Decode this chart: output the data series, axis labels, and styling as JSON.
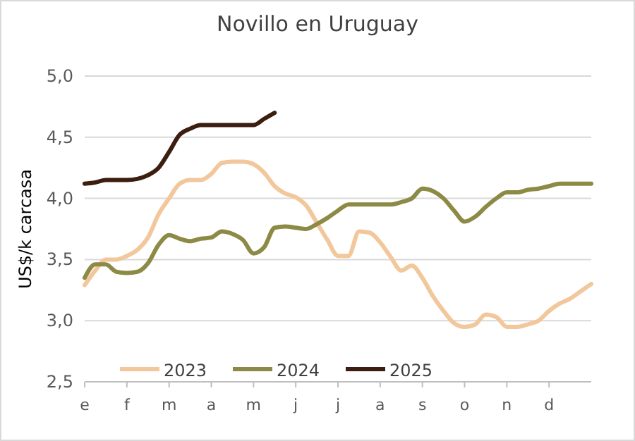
{
  "chart_data": {
    "type": "line",
    "title": "Novillo en Uruguay",
    "ylabel": "US$/k carcasa",
    "categories": [
      "e",
      null,
      null,
      null,
      "f",
      null,
      null,
      null,
      "m",
      null,
      null,
      null,
      "a",
      null,
      null,
      null,
      "m",
      null,
      null,
      null,
      "j",
      null,
      null,
      null,
      "j",
      null,
      null,
      null,
      "a",
      null,
      null,
      null,
      "s",
      null,
      null,
      null,
      "o",
      null,
      null,
      null,
      "n",
      null,
      null,
      null,
      "d",
      null,
      null,
      null,
      null
    ],
    "ylim": [
      2.5,
      5
    ],
    "yticks": [
      {
        "value": 2.5,
        "label": "2,5"
      },
      {
        "value": 3,
        "label": "3,0"
      },
      {
        "value": 3.5,
        "label": "3,5"
      },
      {
        "value": 4,
        "label": "4,0"
      },
      {
        "value": 4.5,
        "label": "4,5"
      },
      {
        "value": 5,
        "label": "5,0"
      }
    ],
    "grid": "y",
    "legend": "bottom",
    "line_style": "solid",
    "marker": "none",
    "series": [
      {
        "name": "2023",
        "color": "#f2c79b",
        "values": [
          3.29,
          3.41,
          3.5,
          3.5,
          3.53,
          3.58,
          3.68,
          3.87,
          4.0,
          4.12,
          4.15,
          4.15,
          4.2,
          4.29,
          4.3,
          4.3,
          4.28,
          4.21,
          4.1,
          4.04,
          4.01,
          3.94,
          3.8,
          3.66,
          3.53,
          3.53,
          3.73,
          3.72,
          3.64,
          3.52,
          3.41,
          3.45,
          3.35,
          3.2,
          3.08,
          2.98,
          2.95,
          2.97,
          3.05,
          3.03,
          2.95,
          2.95,
          2.97,
          3.0,
          3.08,
          3.14,
          3.18,
          3.24,
          3.3
        ]
      },
      {
        "name": "2024",
        "color": "#8c8a45",
        "values": [
          3.35,
          3.46,
          3.46,
          3.4,
          3.39,
          3.4,
          3.47,
          3.62,
          3.7,
          3.67,
          3.65,
          3.67,
          3.68,
          3.73,
          3.71,
          3.66,
          3.55,
          3.6,
          3.76,
          3.77,
          3.76,
          3.75,
          3.79,
          3.84,
          3.9,
          3.95,
          3.95,
          3.95,
          3.95,
          3.95,
          3.97,
          4.0,
          4.08,
          4.06,
          4.0,
          3.9,
          3.81,
          3.85,
          3.93,
          4.0,
          4.05,
          4.05,
          4.07,
          4.08,
          4.1,
          4.12,
          4.12,
          4.12,
          4.12
        ]
      },
      {
        "name": "2025",
        "color": "#3b1e0f",
        "values": [
          4.12,
          4.13,
          4.15,
          4.15,
          4.15,
          4.16,
          4.19,
          4.25,
          4.38,
          4.52,
          4.57,
          4.6,
          4.6,
          4.6,
          4.6,
          4.6,
          4.6,
          4.65,
          4.7,
          null,
          null,
          null,
          null,
          null,
          null,
          null,
          null,
          null,
          null,
          null,
          null,
          null,
          null,
          null,
          null,
          null,
          null,
          null,
          null,
          null,
          null,
          null,
          null,
          null,
          null,
          null,
          null,
          null,
          null
        ]
      }
    ]
  }
}
